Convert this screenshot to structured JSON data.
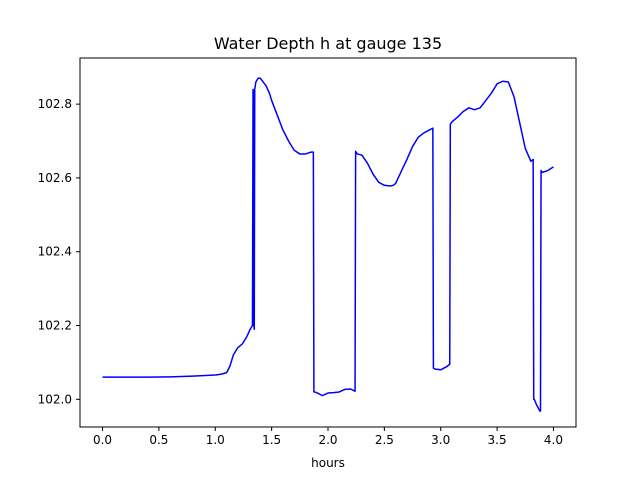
{
  "chart_data": {
    "type": "line",
    "title": "Water Depth h at gauge 135",
    "xlabel": "hours",
    "ylabel": "",
    "xlim": [
      -0.2,
      4.2
    ],
    "ylim": [
      101.925,
      102.925
    ],
    "xticks": [
      0.0,
      0.5,
      1.0,
      1.5,
      2.0,
      2.5,
      3.0,
      3.5,
      4.0
    ],
    "xtick_labels": [
      "0.0",
      "0.5",
      "1.0",
      "1.5",
      "2.0",
      "2.5",
      "3.0",
      "3.5",
      "4.0"
    ],
    "yticks": [
      102.0,
      102.2,
      102.4,
      102.6,
      102.8
    ],
    "ytick_labels": [
      "102.0",
      "102.2",
      "102.4",
      "102.6",
      "102.8"
    ],
    "grid": false,
    "line_color": "#0000ff",
    "series": [
      {
        "x": [
          0.0,
          0.2,
          0.4,
          0.6,
          0.8,
          1.0,
          1.05,
          1.1,
          1.13,
          1.16,
          1.2,
          1.24,
          1.28,
          1.31,
          1.33,
          1.335,
          1.34,
          1.343,
          1.346,
          1.35,
          1.355,
          1.36,
          1.38,
          1.4,
          1.45,
          1.48,
          1.5,
          1.55,
          1.6,
          1.65,
          1.7,
          1.75,
          1.8,
          1.85,
          1.87,
          1.875,
          1.88,
          1.9,
          1.95,
          2.0,
          2.05,
          2.1,
          2.15,
          2.2,
          2.24,
          2.245,
          2.26,
          2.3,
          2.35,
          2.4,
          2.45,
          2.5,
          2.55,
          2.58,
          2.6,
          2.65,
          2.7,
          2.75,
          2.8,
          2.85,
          2.9,
          2.93,
          2.935,
          2.94,
          2.95,
          3.0,
          3.05,
          3.08,
          3.085,
          3.1,
          3.15,
          3.2,
          3.25,
          3.3,
          3.35,
          3.4,
          3.45,
          3.5,
          3.55,
          3.6,
          3.65,
          3.7,
          3.75,
          3.8,
          3.82,
          3.825,
          3.83,
          3.85,
          3.88,
          3.885,
          3.89,
          3.9,
          3.95,
          4.0
        ],
        "values": [
          102.06,
          102.06,
          102.06,
          102.061,
          102.063,
          102.066,
          102.068,
          102.072,
          102.09,
          102.12,
          102.14,
          102.15,
          102.17,
          102.19,
          102.2,
          102.84,
          102.83,
          102.2,
          102.19,
          102.84,
          102.85,
          102.86,
          102.87,
          102.87,
          102.85,
          102.83,
          102.81,
          102.77,
          102.73,
          102.7,
          102.675,
          102.665,
          102.665,
          102.67,
          102.67,
          102.02,
          102.02,
          102.018,
          102.01,
          102.017,
          102.018,
          102.02,
          102.027,
          102.028,
          102.022,
          102.672,
          102.665,
          102.662,
          102.64,
          102.61,
          102.588,
          102.58,
          102.578,
          102.58,
          102.585,
          102.618,
          102.65,
          102.685,
          102.71,
          102.722,
          102.73,
          102.735,
          102.085,
          102.084,
          102.082,
          102.08,
          102.088,
          102.095,
          102.745,
          102.752,
          102.765,
          102.78,
          102.79,
          102.785,
          102.79,
          102.81,
          102.83,
          102.855,
          102.862,
          102.86,
          102.82,
          102.75,
          102.68,
          102.645,
          102.65,
          102.0,
          102.0,
          101.985,
          101.968,
          101.968,
          102.62,
          102.615,
          102.62,
          102.63
        ]
      }
    ]
  }
}
